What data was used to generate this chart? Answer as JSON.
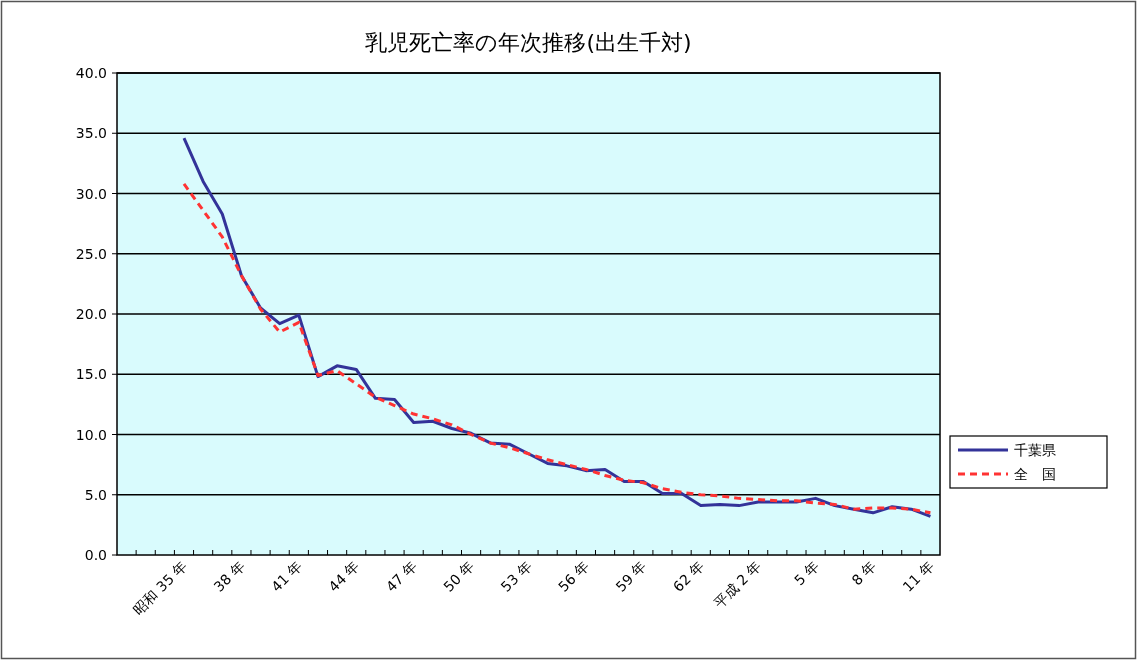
{
  "chart_data": {
    "type": "line",
    "title": "乳児死亡率の年次推移(出生千対)",
    "categories": [
      null,
      null,
      null,
      "昭和 35 年",
      null,
      null,
      "38 年",
      null,
      null,
      "41 年",
      null,
      null,
      "44 年",
      null,
      null,
      "47 年",
      null,
      null,
      "50 年",
      null,
      null,
      "53 年",
      null,
      null,
      "56 年",
      null,
      null,
      "59 年",
      null,
      null,
      "62 年",
      null,
      null,
      "平成 2 年",
      null,
      null,
      "5 年",
      null,
      null,
      "8 年",
      null,
      null,
      "11 年"
    ],
    "series": [
      {
        "name": "千葉県",
        "color": "#333399",
        "line_style": "solid",
        "values": [
          null,
          null,
          null,
          34.6,
          31.0,
          28.3,
          23.2,
          20.5,
          19.2,
          19.9,
          14.8,
          15.7,
          15.4,
          13.0,
          12.9,
          11.0,
          11.1,
          10.5,
          10.1,
          9.3,
          9.2,
          8.4,
          7.6,
          7.4,
          7.0,
          7.1,
          6.1,
          6.1,
          5.1,
          5.1,
          4.1,
          4.2,
          4.1,
          4.4,
          4.4,
          4.4,
          4.7,
          4.1,
          3.8,
          3.5,
          4.0,
          3.8,
          3.2
        ]
      },
      {
        "name": "全　国",
        "color": "#ff3333",
        "line_style": "dashed",
        "values": [
          null,
          null,
          null,
          30.8,
          28.6,
          26.4,
          23.2,
          20.4,
          18.5,
          19.3,
          14.9,
          15.3,
          14.2,
          13.1,
          12.4,
          11.7,
          11.3,
          10.8,
          10.0,
          9.3,
          8.9,
          8.4,
          7.9,
          7.5,
          7.1,
          6.6,
          6.2,
          6.0,
          5.5,
          5.2,
          5.0,
          4.9,
          4.7,
          4.6,
          4.5,
          4.5,
          4.3,
          4.2,
          3.8,
          3.9,
          3.9,
          3.8,
          3.5
        ]
      }
    ],
    "ylim": [
      0,
      40
    ],
    "yticks": [
      {
        "value": 0,
        "label": "0.0"
      },
      {
        "value": 5,
        "label": "5.0"
      },
      {
        "value": 10,
        "label": "10.0"
      },
      {
        "value": 15,
        "label": "15.0"
      },
      {
        "value": 20,
        "label": "20.0"
      },
      {
        "value": 25,
        "label": "25.0"
      },
      {
        "value": 30,
        "label": "30.0"
      },
      {
        "value": 35,
        "label": "35.0"
      },
      {
        "value": 40,
        "label": "40.0"
      }
    ],
    "grid": "y",
    "legend": "right",
    "marker": "none"
  }
}
